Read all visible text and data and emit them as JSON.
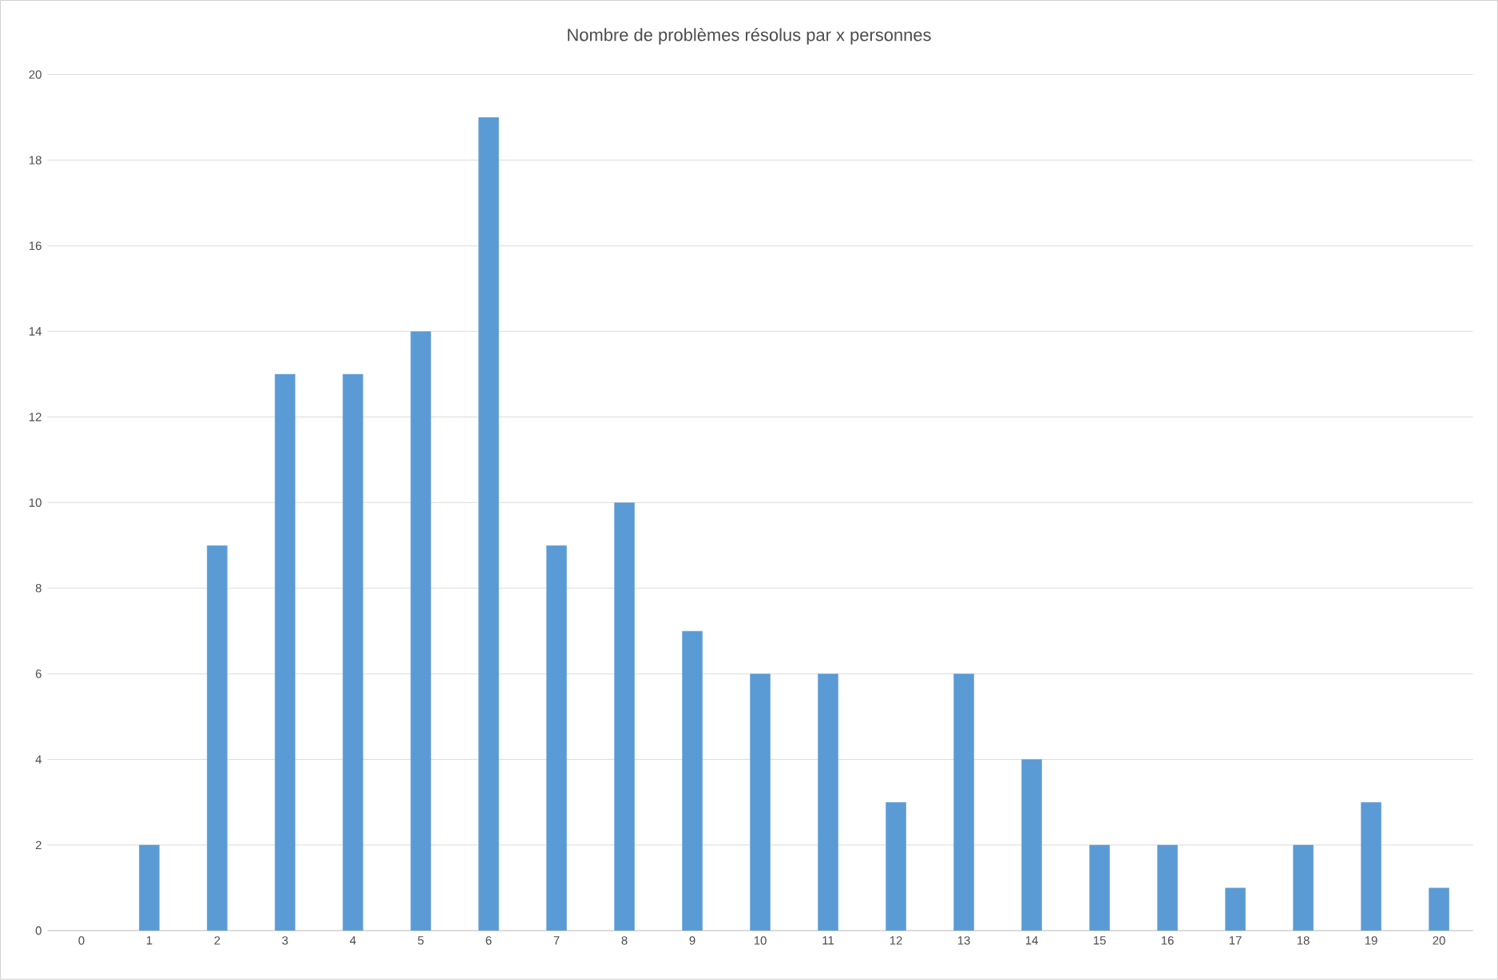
{
  "chart_data": {
    "type": "bar",
    "title": "Nombre de problèmes résolus par x personnes",
    "categories": [
      "0",
      "1",
      "2",
      "3",
      "4",
      "5",
      "6",
      "7",
      "8",
      "9",
      "10",
      "11",
      "12",
      "13",
      "14",
      "15",
      "16",
      "17",
      "18",
      "19",
      "20"
    ],
    "values": [
      0,
      2,
      9,
      13,
      13,
      14,
      19,
      9,
      10,
      7,
      6,
      6,
      3,
      6,
      4,
      2,
      2,
      1,
      2,
      3,
      1
    ],
    "color": "#5b9bd5",
    "ylim": [
      0,
      20
    ],
    "yticks": [
      0,
      2,
      4,
      6,
      8,
      10,
      12,
      14,
      16,
      18,
      20
    ],
    "grid": "y"
  }
}
